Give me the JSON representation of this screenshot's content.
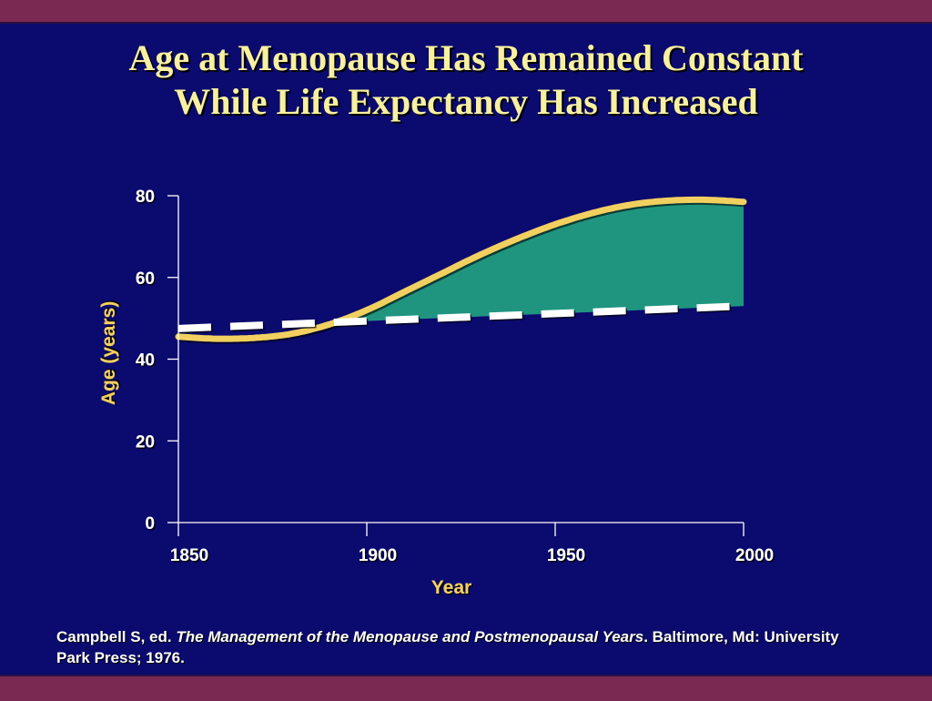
{
  "slide": {
    "title_line1": "Age at Menopause Has Remained Constant",
    "title_line2": "While Life Expectancy Has Increased",
    "citation_part1": "Campbell S, ed. ",
    "citation_italic": "The Management of the Menopause and Postmenopausal Years",
    "citation_part2": ". Baltimore, Md: University Park Press; 1976."
  },
  "colors": {
    "background": "#0b0a6e",
    "frame": "#7a2a52",
    "title": "#f7f0a0",
    "axis_label": "#f2d060",
    "life_expectancy_line": "#f2d060",
    "gap_fill": "#1f9580",
    "menopause_line": "#ffffff"
  },
  "chart_data": {
    "type": "line",
    "xlabel": "Year",
    "ylabel": "Age (years)",
    "xlim": [
      1850,
      2000
    ],
    "ylim": [
      0,
      80
    ],
    "xticks": [
      1850,
      1900,
      1950,
      2000
    ],
    "yticks": [
      0,
      20,
      40,
      60,
      80
    ],
    "grid": false,
    "legend": "none",
    "fill_between": "area between life expectancy and menopause age where life expectancy is higher",
    "series": [
      {
        "key": "life_expectancy",
        "style": "solid",
        "x": [
          1850,
          1860,
          1870,
          1880,
          1890,
          1900,
          1910,
          1920,
          1930,
          1940,
          1950,
          1960,
          1970,
          1980,
          1990,
          2000
        ],
        "y": [
          45.5,
          45,
          45.2,
          46.2,
          48.5,
          52,
          56.5,
          61,
          65.5,
          69.5,
          73,
          75.8,
          77.8,
          78.8,
          79,
          78.5
        ]
      },
      {
        "key": "menopause_age",
        "style": "dashed",
        "x": [
          1850,
          2000
        ],
        "y": [
          47.5,
          53
        ]
      }
    ]
  }
}
